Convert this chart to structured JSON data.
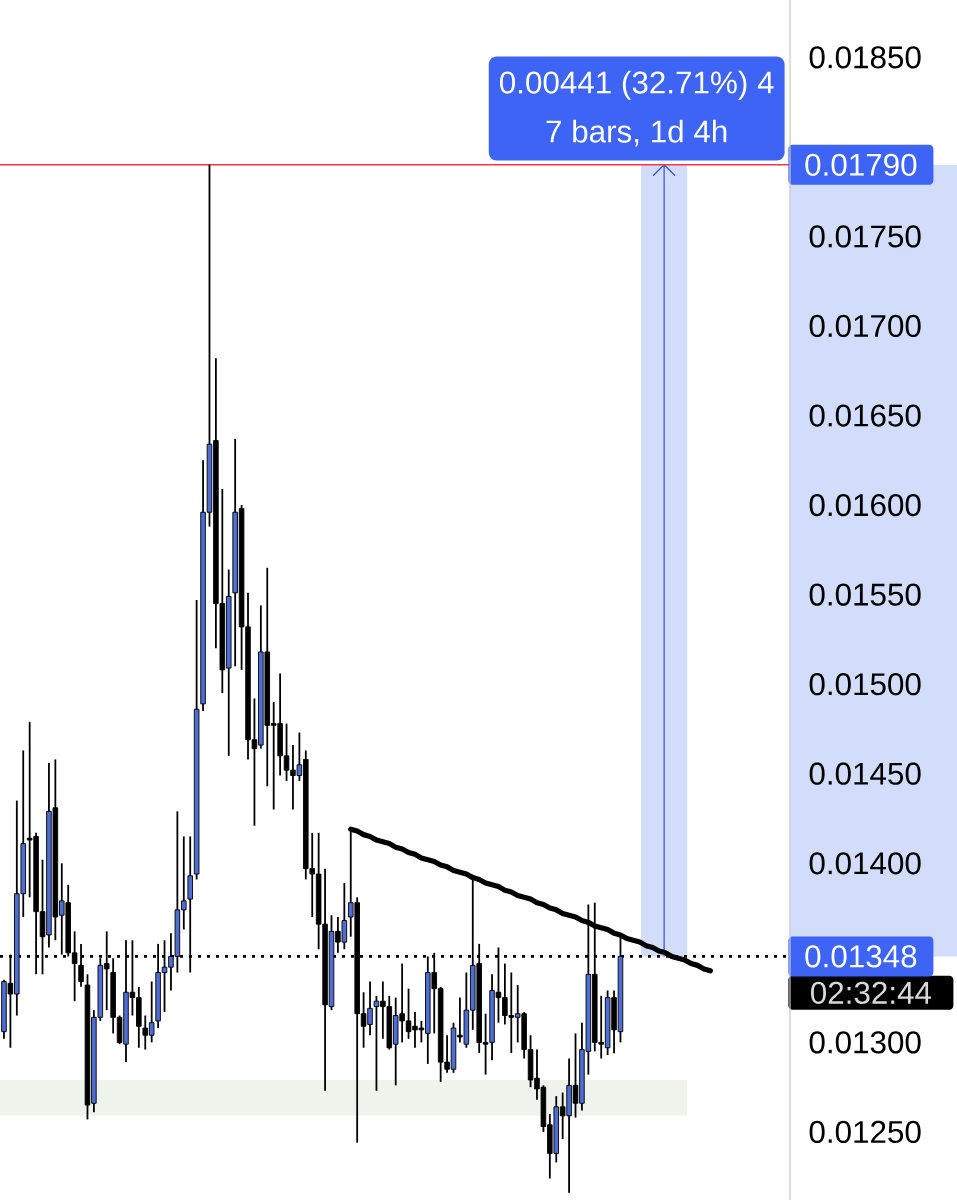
{
  "chart_data": {
    "type": "candlestick",
    "categories": [
      null,
      null,
      null,
      null,
      null,
      null,
      null,
      null,
      null,
      null,
      null,
      null,
      null,
      null,
      null,
      null,
      null,
      null,
      null,
      null,
      null,
      null,
      null,
      null,
      null,
      null,
      null,
      null,
      null,
      null,
      null,
      null,
      null,
      null,
      null,
      null,
      null,
      null,
      null,
      null,
      null,
      null,
      null,
      null,
      null,
      null,
      null,
      null,
      null,
      null,
      null,
      null,
      null,
      null,
      null,
      null,
      null,
      null,
      null,
      null,
      null,
      null,
      null,
      null,
      null,
      null,
      null,
      null,
      null,
      null,
      null,
      null,
      null,
      null,
      null,
      null,
      null,
      null,
      null,
      null,
      null,
      null,
      null,
      null,
      null,
      null,
      null,
      null,
      null,
      null,
      null,
      null,
      null,
      null,
      null,
      null,
      null,
      null,
      null,
      null,
      null,
      null,
      null,
      null,
      null,
      null,
      null,
      null,
      null,
      null,
      null,
      null,
      null,
      null,
      null,
      null,
      null,
      null,
      null,
      null,
      null,
      null,
      null
    ],
    "ohlc": [
      [
        0.01306,
        0.01335,
        0.01302,
        0.01334
      ],
      [
        0.01333,
        0.01349,
        0.01297,
        0.01327
      ],
      [
        0.01327,
        0.01435,
        0.01315,
        0.01383
      ],
      [
        0.01383,
        0.01463,
        0.0137,
        0.01411
      ],
      [
        0.01414,
        0.01479,
        0.01381,
        0.01413
      ],
      [
        0.01415,
        0.01417,
        0.01338,
        0.01373
      ],
      [
        0.01373,
        0.01402,
        0.01338,
        0.01359
      ],
      [
        0.0136,
        0.01456,
        0.01353,
        0.01429
      ],
      [
        0.01431,
        0.01458,
        0.01357,
        0.0137
      ],
      [
        0.01371,
        0.014,
        0.01349,
        0.01379
      ],
      [
        0.01378,
        0.01388,
        0.01348,
        0.0135
      ],
      [
        0.0135,
        0.01362,
        0.01323,
        0.01344
      ],
      [
        0.01343,
        0.01355,
        0.01331,
        0.01334
      ],
      [
        0.01332,
        0.01338,
        0.01257,
        0.01265
      ],
      [
        0.01266,
        0.01318,
        0.01261,
        0.01314
      ],
      [
        0.01314,
        0.01347,
        0.01312,
        0.01343
      ],
      [
        0.01344,
        0.01362,
        0.01318,
        0.01341
      ],
      [
        0.01339,
        0.01347,
        0.01305,
        0.01314
      ],
      [
        0.01314,
        0.01315,
        0.01299,
        0.013
      ],
      [
        0.01299,
        0.01357,
        0.01289,
        0.01328
      ],
      [
        0.01328,
        0.01357,
        0.01315,
        0.01325
      ],
      [
        0.01325,
        0.01331,
        0.01297,
        0.01309
      ],
      [
        0.01308,
        0.01315,
        0.01296,
        0.01304
      ],
      [
        0.01304,
        0.01334,
        0.013,
        0.01311
      ],
      [
        0.01312,
        0.01355,
        0.01308,
        0.01339
      ],
      [
        0.01339,
        0.01357,
        0.01317,
        0.01342
      ],
      [
        0.01342,
        0.01361,
        0.01329,
        0.01348
      ],
      [
        0.01348,
        0.01429,
        0.01339,
        0.01374
      ],
      [
        0.01374,
        0.01415,
        0.01363,
        0.01379
      ],
      [
        0.0138,
        0.01415,
        0.01339,
        0.01393
      ],
      [
        0.01394,
        0.01547,
        0.01391,
        0.01486
      ],
      [
        0.01489,
        0.01625,
        0.01485,
        0.01596
      ],
      [
        0.01596,
        0.0179,
        0.01588,
        0.01634
      ],
      [
        0.01636,
        0.01682,
        0.0152,
        0.01545
      ],
      [
        0.01545,
        0.01609,
        0.01495,
        0.01508
      ],
      [
        0.01509,
        0.01564,
        0.0146,
        0.01549
      ],
      [
        0.01551,
        0.01637,
        0.0151,
        0.01596
      ],
      [
        0.01598,
        0.016,
        0.01508,
        0.01532
      ],
      [
        0.01532,
        0.01551,
        0.01458,
        0.01469
      ],
      [
        0.01469,
        0.01492,
        0.01421,
        0.01464
      ],
      [
        0.01466,
        0.01544,
        0.01464,
        0.01518
      ],
      [
        0.01518,
        0.01565,
        0.01443,
        0.01477
      ],
      [
        0.01478,
        0.0149,
        0.0143,
        0.01477
      ],
      [
        0.01478,
        0.01506,
        0.01449,
        0.0146
      ],
      [
        0.0146,
        0.01478,
        0.01446,
        0.01452
      ],
      [
        0.01452,
        0.01466,
        0.0143,
        0.01449
      ],
      [
        0.01449,
        0.01473,
        0.01446,
        0.01455
      ],
      [
        0.01458,
        0.01463,
        0.01391,
        0.01397
      ],
      [
        0.01397,
        0.01417,
        0.0137,
        0.01394
      ],
      [
        0.01394,
        0.01417,
        0.01352,
        0.01366
      ],
      [
        0.01366,
        0.01397,
        0.01273,
        0.01321
      ],
      [
        0.0132,
        0.01371,
        0.01318,
        0.01362
      ],
      [
        0.01362,
        0.0137,
        0.0135,
        0.01356
      ],
      [
        0.01356,
        0.01389,
        0.01352,
        0.01368
      ],
      [
        0.0137,
        0.01419,
        0.01359,
        0.01378
      ],
      [
        0.01378,
        0.01381,
        0.01244,
        0.01316
      ],
      [
        0.01316,
        0.01328,
        0.01297,
        0.01309
      ],
      [
        0.0131,
        0.01334,
        0.01304,
        0.01319
      ],
      [
        0.0132,
        0.01326,
        0.01273,
        0.01323
      ],
      [
        0.01323,
        0.01334,
        0.01302,
        0.0132
      ],
      [
        0.0132,
        0.01326,
        0.01296,
        0.01297
      ],
      [
        0.01299,
        0.01325,
        0.01276,
        0.01315
      ],
      [
        0.01316,
        0.01344,
        0.013,
        0.01312
      ],
      [
        0.01312,
        0.0133,
        0.01302,
        0.01306
      ],
      [
        0.01309,
        0.01317,
        0.01297,
        0.01307
      ],
      [
        0.01308,
        0.01312,
        0.013,
        0.01307
      ],
      [
        0.01305,
        0.01348,
        0.01288,
        0.01339
      ],
      [
        0.01339,
        0.0135,
        0.01305,
        0.0133
      ],
      [
        0.0133,
        0.01331,
        0.01278,
        0.01289
      ],
      [
        0.01289,
        0.01304,
        0.01283,
        0.01285
      ],
      [
        0.01285,
        0.01311,
        0.01283,
        0.01308
      ],
      [
        0.01304,
        0.01325,
        0.013,
        0.01303
      ],
      [
        0.01299,
        0.01339,
        0.01297,
        0.01318
      ],
      [
        0.01318,
        0.01392,
        0.01307,
        0.01343
      ],
      [
        0.01344,
        0.01355,
        0.01294,
        0.013
      ],
      [
        0.013,
        0.01316,
        0.01282,
        0.01299
      ],
      [
        0.013,
        0.01338,
        0.0129,
        0.01329
      ],
      [
        0.01328,
        0.01353,
        0.01311,
        0.01325
      ],
      [
        0.01325,
        0.01344,
        0.0131,
        0.01315
      ],
      [
        0.01315,
        0.01339,
        0.01294,
        0.01314
      ],
      [
        0.01314,
        0.01332,
        0.013,
        0.01316
      ],
      [
        0.01316,
        0.01317,
        0.01291,
        0.01296
      ],
      [
        0.01296,
        0.01304,
        0.01275,
        0.01279
      ],
      [
        0.0128,
        0.01296,
        0.01268,
        0.01274
      ],
      [
        0.01275,
        0.01276,
        0.0125,
        0.01253
      ],
      [
        0.01254,
        0.0126,
        0.01224,
        0.01238
      ],
      [
        0.01238,
        0.0127,
        0.01233,
        0.01264
      ],
      [
        0.01264,
        0.01272,
        0.01246,
        0.01259
      ],
      [
        0.01259,
        0.01291,
        0.01216,
        0.01276
      ],
      [
        0.01276,
        0.01305,
        0.01258,
        0.01266
      ],
      [
        0.01266,
        0.01311,
        0.01262,
        0.01296
      ],
      [
        0.01295,
        0.01377,
        0.01282,
        0.01338
      ],
      [
        0.01338,
        0.01378,
        0.01295,
        0.013
      ],
      [
        0.013,
        0.01326,
        0.01291,
        0.01299
      ],
      [
        0.01297,
        0.01329,
        0.01293,
        0.01325
      ],
      [
        0.01325,
        0.01329,
        0.01294,
        0.01307
      ],
      [
        0.01306,
        0.0136,
        0.013,
        0.01348
      ],
      null,
      null,
      null,
      null,
      null,
      null,
      null,
      null,
      null,
      null,
      null,
      null,
      null,
      null,
      null,
      null,
      null,
      null,
      null,
      null,
      null,
      null,
      null,
      null,
      null,
      null
    ],
    "colors": [
      "#4f6dd3",
      "#000000",
      "#4f6dd3",
      "#4f6dd3",
      "#000000",
      "#000000",
      "#000000",
      "#4f6dd3",
      "#000000",
      "#4f6dd3",
      "#000000",
      "#000000",
      "#000000",
      "#000000",
      "#4f6dd3",
      "#4f6dd3",
      "#000000",
      "#000000",
      "#000000",
      "#4f6dd3",
      "#000000",
      "#000000",
      "#000000",
      "#4f6dd3",
      "#4f6dd3",
      "#4f6dd3",
      "#4f6dd3",
      "#4f6dd3",
      "#4f6dd3",
      "#4f6dd3",
      "#4f6dd3",
      "#4f6dd3",
      "#4f6dd3",
      "#000000",
      "#000000",
      "#4f6dd3",
      "#4f6dd3",
      "#000000",
      "#000000",
      "#000000",
      "#4f6dd3",
      "#000000",
      "#000000",
      "#000000",
      "#000000",
      "#000000",
      "#4f6dd3",
      "#000000",
      "#000000",
      "#000000",
      "#000000",
      "#4f6dd3",
      "#000000",
      "#4f6dd3",
      "#4f6dd3",
      "#000000",
      "#000000",
      "#4f6dd3",
      "#4f6dd3",
      "#000000",
      "#000000",
      "#4f6dd3",
      "#000000",
      "#000000",
      "#000000",
      "#000000",
      "#4f6dd3",
      "#000000",
      "#000000",
      "#000000",
      "#4f6dd3",
      "#000000",
      "#4f6dd3",
      "#4f6dd3",
      "#000000",
      "#000000",
      "#4f6dd3",
      "#000000",
      "#000000",
      "#000000",
      "#4f6dd3",
      "#000000",
      "#000000",
      "#000000",
      "#000000",
      "#000000",
      "#4f6dd3",
      "#000000",
      "#4f6dd3",
      "#000000",
      "#4f6dd3",
      "#4f6dd3",
      "#000000",
      "#000000",
      "#4f6dd3",
      "#000000",
      "#4f6dd3",
      null,
      null,
      null,
      null,
      null,
      null,
      null,
      null,
      null,
      null,
      null,
      null,
      null,
      null,
      null,
      null,
      null,
      null,
      null,
      null,
      null,
      null,
      null,
      null,
      null,
      null
    ],
    "series": [
      {
        "type": "line",
        "color": "#000000",
        "values": [
          null,
          null,
          null,
          null,
          null,
          null,
          null,
          null,
          null,
          null,
          null,
          null,
          null,
          null,
          null,
          null,
          null,
          null,
          null,
          null,
          null,
          null,
          null,
          null,
          null,
          null,
          null,
          null,
          null,
          null,
          null,
          null,
          null,
          null,
          null,
          null,
          null,
          null,
          null,
          null,
          null,
          null,
          null,
          null,
          null,
          null,
          null,
          null,
          null,
          null,
          null,
          null,
          null,
          null,
          0.01419,
          0.01418,
          0.01416,
          0.01415,
          0.01413,
          0.01412,
          0.01411,
          0.01409,
          0.01408,
          0.01406,
          0.01405,
          0.01403,
          0.01402,
          0.01401,
          0.01399,
          0.01398,
          0.01396,
          0.01395,
          0.01394,
          0.01392,
          0.01391,
          0.01389,
          0.01388,
          0.01387,
          0.01385,
          0.01384,
          0.01382,
          0.01381,
          0.0138,
          0.01378,
          0.01377,
          0.01375,
          0.01374,
          0.01372,
          0.01371,
          0.0137,
          0.01368,
          0.01367,
          0.01365,
          0.01364,
          0.01363,
          0.01361,
          0.0136,
          0.01358,
          0.01357,
          0.01356,
          0.01354,
          0.01353,
          0.01351,
          0.0135,
          0.01348,
          0.01347,
          0.01346,
          0.01344,
          0.01343,
          0.01341,
          0.0134,
          null,
          null,
          null,
          null,
          null,
          null,
          null,
          null,
          null,
          null,
          null,
          null
        ]
      }
    ],
    "ylim": [
      0.01212,
      0.01882
    ],
    "yticks": [
      {
        "value": 0.0125,
        "label": "0.01250"
      },
      {
        "value": 0.013,
        "label": "0.01300"
      },
      {
        "value": 0.014,
        "label": "0.01400"
      },
      {
        "value": 0.0145,
        "label": "0.01450"
      },
      {
        "value": 0.015,
        "label": "0.01500"
      },
      {
        "value": 0.0155,
        "label": "0.01550"
      },
      {
        "value": 0.016,
        "label": "0.01600"
      },
      {
        "value": 0.0165,
        "label": "0.01650"
      },
      {
        "value": 0.017,
        "label": "0.01700"
      },
      {
        "value": 0.0175,
        "label": "0.01750"
      },
      {
        "value": 0.0185,
        "label": "0.01850"
      }
    ],
    "tick_labels": "y",
    "ref_lines": [
      {
        "axis": "y",
        "value": 0.0179,
        "label": "0.01790",
        "color": "#f23645",
        "line_style": "solid"
      },
      {
        "axis": "y",
        "value": 0.01348,
        "label": "0.01348",
        "color": "#000000",
        "line_style": "dotted"
      }
    ],
    "bands": [
      {
        "axis": "y",
        "from": 0.01348,
        "to": 0.0179,
        "label": "0.00441 (32.71%) 4",
        "color": "#d2ddfb"
      },
      {
        "axis": "y",
        "from": 0.01259,
        "to": 0.01279,
        "color": "#eef4ec"
      }
    ],
    "annotations": [
      "7 bars, 1d 4h",
      "02:32:44"
    ]
  }
}
